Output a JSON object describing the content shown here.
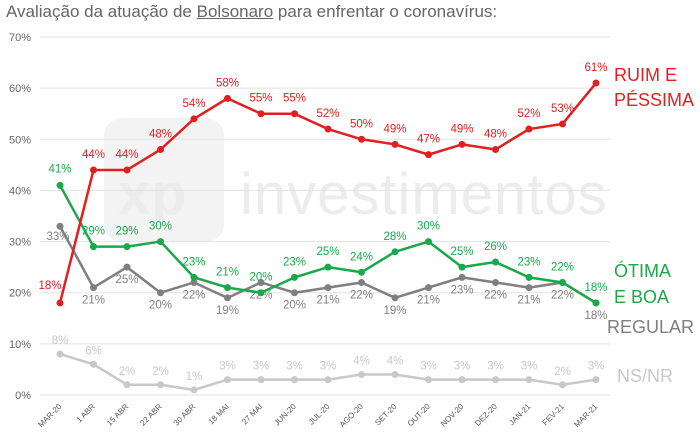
{
  "chart_data": {
    "type": "line",
    "title_prefix": "Avaliação da atuação de ",
    "title_name": "Bolsonaro",
    "title_suffix": " para enfrentar o coronavírus:",
    "xlabel": "",
    "ylabel": "",
    "ylim": [
      0,
      70
    ],
    "ytick_labels": [
      "0%",
      "10%",
      "20%",
      "30%",
      "40%",
      "50%",
      "60%",
      "70%"
    ],
    "yticks": [
      0,
      10,
      20,
      30,
      40,
      50,
      60,
      70
    ],
    "grid": true,
    "categories": [
      "MAR-20",
      "1 ABR",
      "15 ABR",
      "22 ABR",
      "30 ABR",
      "18 MAI",
      "27 MAI",
      "JUN-20",
      "JUL-20",
      "AGO-20",
      "SET-20",
      "OUT-20",
      "NOV-20",
      "DEZ-20",
      "JAN-21",
      "FEV-21",
      "MAR-21"
    ],
    "series": [
      {
        "name": "RUIM E PÉSSIMA",
        "legend_lines": [
          "RUIM E",
          "PÉSSIMA"
        ],
        "color": "#e02020",
        "values": [
          18,
          44,
          44,
          48,
          54,
          58,
          55,
          55,
          52,
          50,
          49,
          47,
          49,
          48,
          52,
          53,
          61
        ],
        "labels": [
          "18%",
          "44%",
          "44%",
          "48%",
          "54%",
          "58%",
          "55%",
          "55%",
          "52%",
          "50%",
          "49%",
          "47%",
          "49%",
          "48%",
          "52%",
          "53%",
          "61%"
        ]
      },
      {
        "name": "ÓTIMA E BOA",
        "legend_lines": [
          "ÓTIMA",
          "E BOA"
        ],
        "color": "#1aa84a",
        "values": [
          41,
          29,
          29,
          30,
          23,
          21,
          20,
          23,
          25,
          24,
          28,
          30,
          25,
          26,
          23,
          22,
          18
        ],
        "labels": [
          "41%",
          "29%",
          "29%",
          "30%",
          "23%",
          "21%",
          "20%",
          "23%",
          "25%",
          "24%",
          "28%",
          "30%",
          "25%",
          "26%",
          "23%",
          "22%",
          "18%"
        ]
      },
      {
        "name": "REGULAR",
        "legend_lines": [
          "REGULAR"
        ],
        "color": "#7f7f7f",
        "values": [
          33,
          21,
          25,
          20,
          22,
          19,
          22,
          20,
          21,
          22,
          19,
          21,
          23,
          22,
          21,
          22,
          18
        ],
        "labels": [
          "33%",
          "21%",
          "25%",
          "20%",
          "22%",
          "19%",
          "22%",
          "20%",
          "21%",
          "22%",
          "19%",
          "21%",
          "23%",
          "22%",
          "21%",
          "22%",
          "18%"
        ]
      },
      {
        "name": "NS/NR",
        "legend_lines": [
          "NS/NR"
        ],
        "color": "#c8c8c8",
        "values": [
          8,
          6,
          2,
          2,
          1,
          3,
          3,
          3,
          3,
          4,
          4,
          3,
          3,
          3,
          3,
          2,
          3
        ],
        "labels": [
          "8%",
          "6%",
          "2%",
          "2%",
          "1%",
          "3%",
          "3%",
          "3%",
          "3%",
          "4%",
          "4%",
          "3%",
          "3%",
          "3%",
          "3%",
          "2%",
          "3%"
        ]
      }
    ],
    "watermark": "investimentos",
    "watermark_logo": "xp"
  }
}
